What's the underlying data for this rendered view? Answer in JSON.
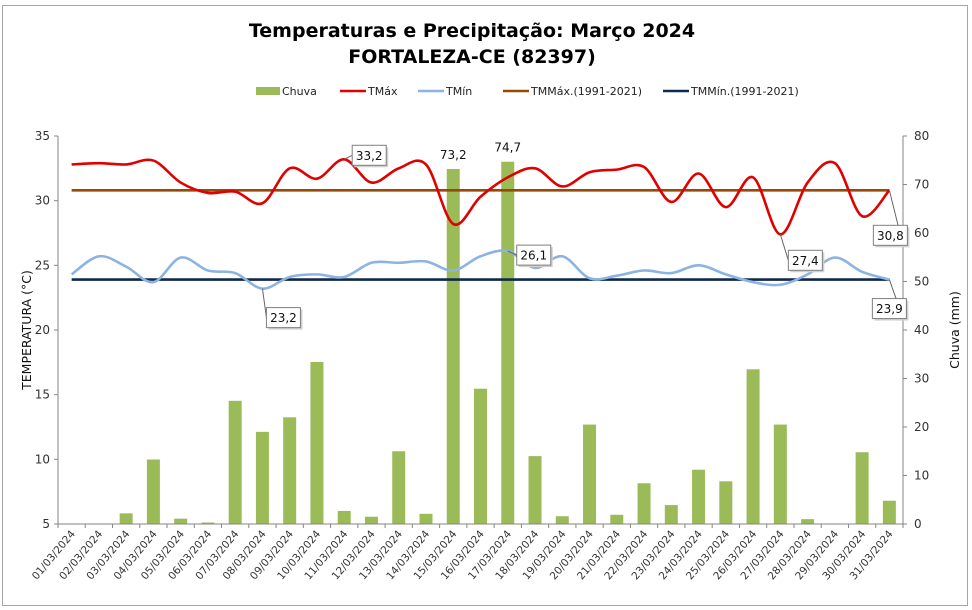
{
  "chart_data": {
    "type": "bar+line",
    "title": "Temperaturas e Precipitação: Março 2024",
    "subtitle": "FORTALEZA-CE (82397)",
    "ylabel": "TEMPERATURA (°C)",
    "y2label": "Chuva (mm)",
    "ylim": [
      5,
      35
    ],
    "yticks": [
      5,
      10,
      15,
      20,
      25,
      30,
      35
    ],
    "y2lim": [
      0,
      80
    ],
    "y2ticks": [
      0,
      10,
      20,
      30,
      40,
      50,
      60,
      70,
      80
    ],
    "grid": false,
    "legend_position": "top",
    "categories": [
      "01/03/2024",
      "02/03/2024",
      "03/03/2024",
      "04/03/2024",
      "05/03/2024",
      "06/03/2024",
      "07/03/2024",
      "08/03/2024",
      "09/03/2024",
      "10/03/2024",
      "11/03/2024",
      "12/03/2024",
      "13/03/2024",
      "14/03/2024",
      "15/03/2024",
      "16/03/2024",
      "17/03/2024",
      "18/03/2024",
      "19/03/2024",
      "20/03/2024",
      "21/03/2024",
      "22/03/2024",
      "23/03/2024",
      "24/03/2024",
      "25/03/2024",
      "26/03/2024",
      "27/03/2024",
      "28/03/2024",
      "29/03/2024",
      "30/03/2024",
      "31/03/2024"
    ],
    "series": [
      {
        "name": "Chuva",
        "type": "bar",
        "axis": "right",
        "color": "#9bbb59",
        "values": [
          0,
          0,
          2.2,
          13.3,
          1.1,
          0.3,
          25.4,
          19.0,
          22.0,
          33.4,
          2.7,
          1.5,
          15.0,
          2.1,
          73.2,
          27.9,
          74.7,
          14.0,
          1.6,
          20.5,
          1.9,
          8.4,
          3.9,
          11.2,
          8.8,
          31.9,
          20.5,
          1.0,
          0,
          14.8,
          4.8
        ]
      },
      {
        "name": "TMáx",
        "type": "line",
        "axis": "left",
        "color": "#e00000",
        "values": [
          32.8,
          32.9,
          32.8,
          33.1,
          31.4,
          30.6,
          30.7,
          29.8,
          32.5,
          31.7,
          33.2,
          31.4,
          32.5,
          32.8,
          28.2,
          30.3,
          31.8,
          32.5,
          31.1,
          32.2,
          32.4,
          32.6,
          29.9,
          32.1,
          29.5,
          31.8,
          27.4,
          31.4,
          32.9,
          28.8,
          30.8
        ]
      },
      {
        "name": "TMín",
        "type": "line",
        "axis": "left",
        "color": "#8db3e2",
        "values": [
          24.3,
          25.7,
          24.9,
          23.7,
          25.6,
          24.6,
          24.4,
          23.2,
          24.1,
          24.3,
          24.1,
          25.2,
          25.2,
          25.3,
          24.6,
          25.7,
          26.1,
          24.8,
          25.7,
          24.0,
          24.2,
          24.6,
          24.4,
          25.0,
          24.3,
          23.7,
          23.5,
          24.3,
          25.6,
          24.5,
          23.9
        ]
      },
      {
        "name": "TMMáx.(1991-2021)",
        "type": "line",
        "axis": "left",
        "color": "#984807",
        "value": 30.8
      },
      {
        "name": "TMMín.(1991-2021)",
        "type": "line",
        "axis": "left",
        "color": "#0f2a4a",
        "value": 23.9
      }
    ],
    "data_labels": [
      {
        "series": "Chuva",
        "day": 15,
        "text": "73,2",
        "boxed": false
      },
      {
        "series": "Chuva",
        "day": 17,
        "text": "74,7",
        "boxed": false
      },
      {
        "series": "TMáx",
        "day": 11,
        "text": "33,2",
        "boxed": true
      },
      {
        "series": "TMáx",
        "day": 27,
        "text": "27,4",
        "boxed": true
      },
      {
        "series": "TMáx",
        "day": 31,
        "text": "30,8",
        "boxed": true
      },
      {
        "series": "TMín",
        "day": 8,
        "text": "23,2",
        "boxed": true
      },
      {
        "series": "TMín",
        "day": 17,
        "text": "26,1",
        "boxed": true
      },
      {
        "series": "TMín",
        "day": 31,
        "text": "23,9",
        "boxed": true
      }
    ]
  }
}
